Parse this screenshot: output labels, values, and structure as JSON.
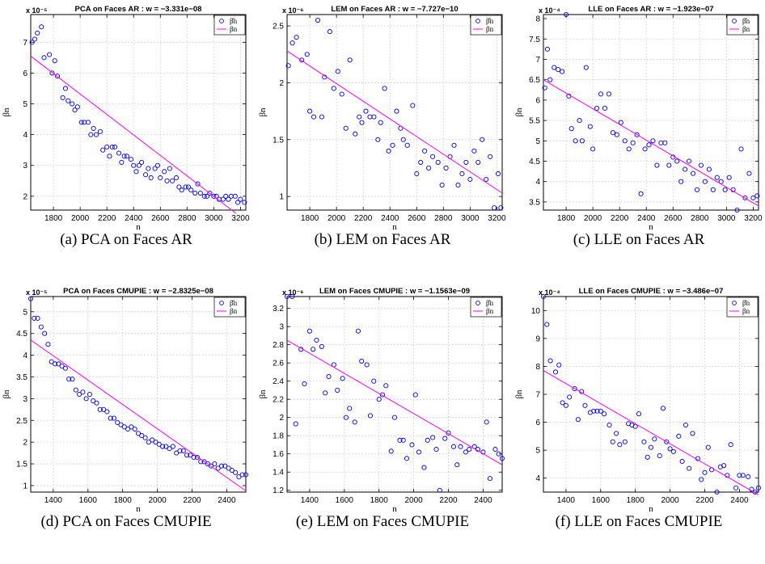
{
  "chart_data": [
    {
      "id": "a",
      "type": "scatter",
      "title": "PCA on Faces AR : w = −3.331e−08",
      "exponent": "x 10⁻⁵",
      "xlabel": "n",
      "ylabel": "βn",
      "caption": "(a) PCA on Faces AR",
      "xlim": [
        1630,
        3240
      ],
      "ylim": [
        1.55,
        7.9
      ],
      "xticks": [
        1800,
        2000,
        2200,
        2400,
        2600,
        2800,
        3000,
        3200
      ],
      "yticks": [
        2,
        3,
        4,
        5,
        6,
        7
      ],
      "grid": true,
      "legend_position": "top-right",
      "series": [
        {
          "name": "β̂n",
          "kind": "points",
          "color": "#0000ff",
          "x": [
            1640,
            1660,
            1680,
            1710,
            1730,
            1770,
            1790,
            1810,
            1830,
            1870,
            1890,
            1910,
            1940,
            1960,
            1980,
            2010,
            2030,
            2060,
            2080,
            2100,
            2120,
            2150,
            2170,
            2200,
            2220,
            2240,
            2260,
            2290,
            2310,
            2330,
            2350,
            2380,
            2400,
            2420,
            2440,
            2460,
            2490,
            2510,
            2530,
            2560,
            2580,
            2600,
            2630,
            2650,
            2670,
            2690,
            2720,
            2740,
            2760,
            2790,
            2810,
            2830,
            2860,
            2880,
            2900,
            2930,
            2950,
            2970,
            3000,
            3020,
            3040,
            3070,
            3090,
            3110,
            3130,
            3160,
            3180,
            3200,
            3230
          ],
          "y": [
            7.0,
            7.1,
            7.3,
            7.5,
            6.5,
            6.6,
            6.0,
            6.4,
            5.9,
            5.2,
            5.5,
            5.1,
            5.0,
            4.8,
            4.9,
            4.4,
            4.4,
            4.4,
            4.0,
            4.2,
            4.0,
            4.1,
            3.5,
            3.6,
            3.3,
            3.6,
            3.6,
            3.4,
            3.1,
            3.3,
            3.3,
            3.2,
            3.0,
            2.8,
            3.0,
            3.1,
            2.7,
            2.9,
            2.6,
            2.9,
            3.0,
            2.6,
            2.8,
            2.5,
            2.9,
            2.5,
            2.6,
            2.3,
            2.2,
            2.3,
            2.3,
            2.2,
            2.1,
            2.4,
            2.1,
            2.0,
            2.0,
            2.1,
            2.0,
            2.0,
            1.9,
            1.9,
            2.0,
            1.9,
            2.0,
            2.0,
            1.8,
            1.9,
            1.8
          ]
        },
        {
          "name": "βn",
          "kind": "line",
          "color": "#ff00ff",
          "x": [
            1630,
            3240
          ],
          "y": [
            6.55,
            1.2
          ]
        }
      ]
    },
    {
      "id": "b",
      "type": "scatter",
      "title": "LEM on Faces AR : w = −7.727e−10",
      "exponent": "x 10⁻⁶",
      "xlabel": "n",
      "ylabel": "βn",
      "caption": "(b) LEM on Faces AR",
      "xlim": [
        1630,
        3240
      ],
      "ylim": [
        0.88,
        2.6
      ],
      "xticks": [
        1800,
        2000,
        2200,
        2400,
        2600,
        2800,
        3000,
        3200
      ],
      "yticks": [
        1,
        1.5,
        2,
        2.5
      ],
      "grid": true,
      "legend_position": "top-right",
      "series": [
        {
          "name": "β̂n",
          "kind": "points",
          "color": "#0000ff",
          "x": [
            1640,
            1670,
            1700,
            1740,
            1780,
            1800,
            1830,
            1860,
            1890,
            1910,
            1950,
            1980,
            2010,
            2040,
            2070,
            2100,
            2140,
            2170,
            2190,
            2220,
            2250,
            2280,
            2310,
            2330,
            2360,
            2390,
            2420,
            2450,
            2480,
            2500,
            2530,
            2570,
            2600,
            2630,
            2660,
            2690,
            2720,
            2760,
            2790,
            2820,
            2850,
            2880,
            2910,
            2940,
            2970,
            3000,
            3030,
            3060,
            3090,
            3120,
            3150,
            3180,
            3210,
            3230
          ],
          "y": [
            2.15,
            2.35,
            2.4,
            2.2,
            2.25,
            1.75,
            1.7,
            2.55,
            1.7,
            2.05,
            2.45,
            1.95,
            2.1,
            1.9,
            1.6,
            2.2,
            1.55,
            1.7,
            1.65,
            1.75,
            1.7,
            1.7,
            1.5,
            1.65,
            1.95,
            1.4,
            1.45,
            1.75,
            1.6,
            1.5,
            1.45,
            1.8,
            1.2,
            1.3,
            1.4,
            1.25,
            1.35,
            1.3,
            1.1,
            1.25,
            1.35,
            1.45,
            1.1,
            1.2,
            1.3,
            1.15,
            1.4,
            1.3,
            1.5,
            1.15,
            1.35,
            0.9,
            1.2,
            0.9
          ]
        },
        {
          "name": "βn",
          "kind": "line",
          "color": "#ff00ff",
          "x": [
            1630,
            3240
          ],
          "y": [
            2.28,
            1.03
          ]
        }
      ]
    },
    {
      "id": "c",
      "type": "scatter",
      "title": "LLE on Faces AR : w = −1.923e−07",
      "exponent": "x 10⁻⁴",
      "xlabel": "n",
      "ylabel": "βn",
      "caption": "(c) LLE on Faces AR",
      "xlim": [
        1630,
        3240
      ],
      "ylim": [
        3.3,
        8.1
      ],
      "xticks": [
        1800,
        2000,
        2200,
        2400,
        2600,
        2800,
        3000,
        3200
      ],
      "yticks": [
        3.5,
        4,
        4.5,
        5,
        5.5,
        6,
        6.5,
        7,
        7.5,
        8
      ],
      "grid": true,
      "legend_position": "top-right",
      "series": [
        {
          "name": "β̂n",
          "kind": "points",
          "color": "#0000ff",
          "x": [
            1640,
            1660,
            1680,
            1710,
            1740,
            1770,
            1800,
            1820,
            1840,
            1870,
            1900,
            1920,
            1950,
            1980,
            2000,
            2030,
            2060,
            2090,
            2120,
            2150,
            2180,
            2210,
            2240,
            2270,
            2300,
            2330,
            2360,
            2390,
            2420,
            2450,
            2480,
            2510,
            2540,
            2570,
            2600,
            2630,
            2660,
            2690,
            2720,
            2750,
            2780,
            2810,
            2840,
            2870,
            2900,
            2930,
            2960,
            2990,
            3020,
            3050,
            3080,
            3110,
            3140,
            3170,
            3200,
            3230
          ],
          "y": [
            6.3,
            7.25,
            6.5,
            6.8,
            6.75,
            6.7,
            8.1,
            6.1,
            5.3,
            5.0,
            5.5,
            5.0,
            6.8,
            5.35,
            4.8,
            5.8,
            6.15,
            5.8,
            6.15,
            5.2,
            5.15,
            5.45,
            5.0,
            4.8,
            4.95,
            5.15,
            3.7,
            4.8,
            4.9,
            5.0,
            4.4,
            4.95,
            4.95,
            4.4,
            4.6,
            4.5,
            4.0,
            4.3,
            4.5,
            4.2,
            3.8,
            4.4,
            4.0,
            4.3,
            3.8,
            4.1,
            4.0,
            3.8,
            4.1,
            3.8,
            3.3,
            4.8,
            3.6,
            4.2,
            3.6,
            3.65
          ]
        },
        {
          "name": "βn",
          "kind": "line",
          "color": "#ff00ff",
          "x": [
            1630,
            3240
          ],
          "y": [
            6.5,
            3.4
          ]
        }
      ]
    },
    {
      "id": "d",
      "type": "scatter",
      "title": "PCA on Faces CMUPIE : w = −2.8325e−08",
      "exponent": "x 10⁻⁵",
      "xlabel": "n",
      "ylabel": "βn",
      "caption": "(d) PCA on Faces CMUPIE",
      "xlim": [
        1270,
        2510
      ],
      "ylim": [
        0.85,
        5.35
      ],
      "xticks": [
        1400,
        1600,
        1800,
        2000,
        2200,
        2400
      ],
      "yticks": [
        1,
        1.5,
        2,
        2.5,
        3,
        3.5,
        4,
        4.5,
        5
      ],
      "grid": true,
      "legend_position": "top-right",
      "series": [
        {
          "name": "β̂n",
          "kind": "points",
          "color": "#0000ff",
          "x": [
            1270,
            1290,
            1310,
            1330,
            1350,
            1370,
            1390,
            1410,
            1430,
            1450,
            1470,
            1490,
            1510,
            1530,
            1550,
            1570,
            1590,
            1610,
            1630,
            1650,
            1670,
            1690,
            1710,
            1730,
            1750,
            1770,
            1790,
            1810,
            1830,
            1850,
            1870,
            1890,
            1910,
            1930,
            1950,
            1970,
            1990,
            2010,
            2030,
            2050,
            2070,
            2090,
            2110,
            2130,
            2150,
            2170,
            2190,
            2210,
            2230,
            2250,
            2270,
            2290,
            2310,
            2330,
            2350,
            2370,
            2390,
            2410,
            2430,
            2450,
            2470,
            2490,
            2510
          ],
          "y": [
            5.3,
            4.85,
            4.85,
            4.65,
            4.5,
            4.25,
            3.85,
            3.8,
            3.8,
            3.75,
            3.7,
            3.45,
            3.45,
            3.2,
            3.1,
            3.15,
            3.0,
            3.1,
            2.95,
            2.9,
            2.75,
            2.75,
            2.7,
            2.55,
            2.55,
            2.45,
            2.4,
            2.35,
            2.3,
            2.35,
            2.3,
            2.2,
            2.15,
            2.1,
            2.0,
            2.05,
            2.0,
            1.95,
            1.9,
            1.9,
            1.85,
            1.9,
            1.75,
            1.8,
            1.8,
            1.7,
            1.7,
            1.65,
            1.65,
            1.55,
            1.55,
            1.5,
            1.45,
            1.5,
            1.4,
            1.45,
            1.45,
            1.4,
            1.35,
            1.3,
            1.2,
            1.25,
            1.25
          ]
        },
        {
          "name": "βn",
          "kind": "line",
          "color": "#ff00ff",
          "x": [
            1270,
            2510
          ],
          "y": [
            4.35,
            0.88
          ]
        }
      ]
    },
    {
      "id": "e",
      "type": "scatter",
      "title": "LEM on Faces CMUPIE : w = −1.1563e−09",
      "exponent": "x 10⁻⁶",
      "xlabel": "n",
      "ylabel": "βn",
      "caption": "(e) LEM on Faces CMUPIE",
      "xlim": [
        1270,
        2510
      ],
      "ylim": [
        1.18,
        3.33
      ],
      "xticks": [
        1400,
        1600,
        1800,
        2000,
        2200,
        2400
      ],
      "yticks": [
        1.2,
        1.4,
        1.6,
        1.8,
        2,
        2.2,
        2.4,
        2.6,
        2.8,
        3,
        3.2
      ],
      "grid": true,
      "legend_position": "top-right",
      "series": [
        {
          "name": "β̂n",
          "kind": "points",
          "color": "#0000ff",
          "x": [
            1270,
            1300,
            1320,
            1350,
            1370,
            1400,
            1420,
            1440,
            1470,
            1490,
            1510,
            1540,
            1560,
            1590,
            1610,
            1630,
            1660,
            1680,
            1700,
            1730,
            1750,
            1770,
            1800,
            1820,
            1840,
            1870,
            1890,
            1920,
            1940,
            1960,
            1990,
            2010,
            2030,
            2060,
            2080,
            2110,
            2130,
            2150,
            2180,
            2200,
            2230,
            2250,
            2270,
            2300,
            2320,
            2350,
            2370,
            2400,
            2420,
            2440,
            2470,
            2490,
            2510
          ],
          "y": [
            3.33,
            3.33,
            1.93,
            2.75,
            2.37,
            2.95,
            2.75,
            2.85,
            2.78,
            2.27,
            2.45,
            2.58,
            2.3,
            2.43,
            2.0,
            2.1,
            1.95,
            2.95,
            2.62,
            2.58,
            2.02,
            2.4,
            2.2,
            2.25,
            2.35,
            1.63,
            2.0,
            1.75,
            1.75,
            1.55,
            1.7,
            2.25,
            1.62,
            1.45,
            1.75,
            1.78,
            1.65,
            1.2,
            1.77,
            1.83,
            1.68,
            1.48,
            1.68,
            1.62,
            1.65,
            1.68,
            1.65,
            1.62,
            1.95,
            1.33,
            1.65,
            1.6,
            1.55
          ]
        },
        {
          "name": "βn",
          "kind": "line",
          "color": "#ff00ff",
          "x": [
            1270,
            2510
          ],
          "y": [
            2.85,
            1.48
          ]
        }
      ]
    },
    {
      "id": "f",
      "type": "scatter",
      "title": "LLE on Faces CMUPIE : w = −3.486e−07",
      "exponent": "x 10⁻⁴",
      "xlabel": "n",
      "ylabel": "βn",
      "caption": "(f) LLE on Faces CMUPIE",
      "xlim": [
        1270,
        2510
      ],
      "ylim": [
        3.5,
        10.5
      ],
      "xticks": [
        1400,
        1600,
        1800,
        2000,
        2200,
        2400
      ],
      "yticks": [
        4,
        5,
        6,
        7,
        8,
        9,
        10
      ],
      "grid": true,
      "legend_position": "top-right",
      "series": [
        {
          "name": "β̂n",
          "kind": "points",
          "color": "#0000ff",
          "x": [
            1270,
            1290,
            1310,
            1340,
            1360,
            1380,
            1400,
            1420,
            1450,
            1470,
            1490,
            1510,
            1540,
            1560,
            1580,
            1600,
            1620,
            1650,
            1670,
            1690,
            1710,
            1740,
            1760,
            1780,
            1800,
            1820,
            1850,
            1870,
            1890,
            1910,
            1940,
            1960,
            1980,
            2000,
            2020,
            2050,
            2070,
            2090,
            2110,
            2130,
            2160,
            2180,
            2200,
            2220,
            2240,
            2270,
            2290,
            2310,
            2330,
            2350,
            2380,
            2400,
            2420,
            2450,
            2470,
            2490,
            2510
          ],
          "y": [
            10.5,
            9.5,
            8.2,
            7.8,
            8.05,
            6.7,
            6.6,
            6.9,
            7.2,
            6.1,
            7.1,
            6.6,
            6.35,
            6.4,
            6.4,
            6.4,
            6.3,
            5.9,
            5.3,
            5.6,
            5.2,
            5.3,
            5.95,
            5.9,
            5.85,
            6.3,
            5.3,
            4.75,
            5.1,
            5.4,
            4.8,
            6.5,
            5.3,
            5.05,
            4.95,
            5.5,
            4.6,
            5.9,
            4.35,
            5.6,
            4.7,
            3.95,
            4.2,
            5.1,
            4.3,
            3.5,
            4.4,
            4.45,
            4.1,
            5.2,
            3.65,
            4.1,
            4.1,
            4.05,
            3.6,
            3.5,
            3.65
          ]
        },
        {
          "name": "βn",
          "kind": "line",
          "color": "#ff00ff",
          "x": [
            1270,
            2510
          ],
          "y": [
            7.85,
            3.4
          ]
        }
      ]
    }
  ]
}
